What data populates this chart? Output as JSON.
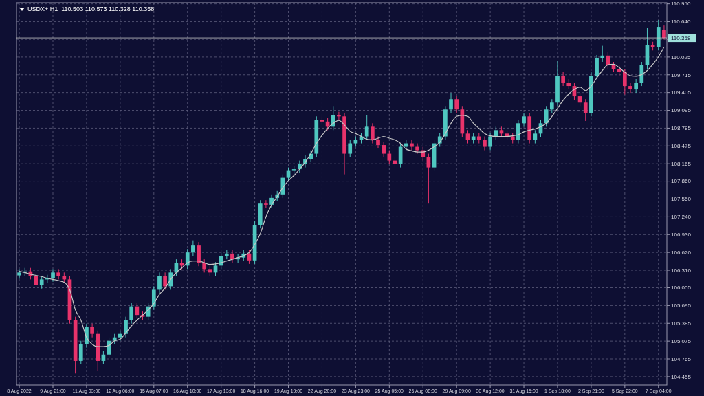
{
  "chart_data": {
    "type": "candlestick",
    "title": "USDX+,H1  110.503 110.573 110.328 110.358",
    "grid": true,
    "colors": [
      "#4fc7c0",
      "#4fc7c0",
      "#e8336b",
      "#e8336b",
      "#4fc7c0",
      "#4fc7c0",
      "#4fc7c0",
      "#e8336b",
      "#e8336b",
      "#e8336b",
      "#e8336b",
      "#4fc7c0",
      "#4fc7c0",
      "#e8336b",
      "#e8336b",
      "#4fc7c0",
      "#4fc7c0",
      "#4fc7c0",
      "#4fc7c0",
      "#4fc7c0",
      "#4fc7c0",
      "#e8336b",
      "#e8336b",
      "#4fc7c0",
      "#4fc7c0",
      "#4fc7c0",
      "#e8336b",
      "#4fc7c0",
      "#4fc7c0",
      "#e8336b",
      "#4fc7c0",
      "#4fc7c0",
      "#e8336b",
      "#e8336b",
      "#e8336b",
      "#4fc7c0",
      "#4fc7c0",
      "#4fc7c0",
      "#e8336b",
      "#4fc7c0",
      "#4fc7c0",
      "#e8336b",
      "#4fc7c0",
      "#4fc7c0",
      "#e8336b",
      "#4fc7c0",
      "#4fc7c0",
      "#4fc7c0",
      "#4fc7c0",
      "#4fc7c0",
      "#4fc7c0",
      "#4fc7c0",
      "#4fc7c0",
      "#4fc7c0",
      "#e8336b",
      "#e8336b",
      "#4fc7c0",
      "#e8336b",
      "#e8336b",
      "#4fc7c0",
      "#4fc7c0",
      "#4fc7c0",
      "#4fc7c0",
      "#e8336b",
      "#e8336b",
      "#e8336b",
      "#e8336b",
      "#e8336b",
      "#4fc7c0",
      "#4fc7c0",
      "#e8336b",
      "#e8336b",
      "#e8336b",
      "#e8336b",
      "#4fc7c0",
      "#4fc7c0",
      "#4fc7c0",
      "#4fc7c0",
      "#e8336b",
      "#e8336b",
      "#e8336b",
      "#4fc7c0",
      "#e8336b",
      "#e8336b",
      "#4fc7c0",
      "#4fc7c0",
      "#e8336b",
      "#e8336b",
      "#e8336b",
      "#4fc7c0",
      "#4fc7c0",
      "#e8336b",
      "#4fc7c0",
      "#4fc7c0",
      "#4fc7c0",
      "#4fc7c0",
      "#4fc7c0",
      "#e8336b",
      "#e8336b",
      "#e8336b",
      "#e8336b",
      "#e8336b",
      "#4fc7c0",
      "#4fc7c0",
      "#4fc7c0",
      "#e8336b",
      "#e8336b",
      "#e8336b",
      "#e8336b",
      "#e8336b",
      "#4fc7c0",
      "#4fc7c0",
      "#4fc7c0",
      "#e8336b",
      "#4fc7c0",
      "#e8336b"
    ],
    "categories": [
      "8 Aug 2022",
      null,
      null,
      null,
      null,
      null,
      "9 Aug 21:00",
      null,
      null,
      null,
      null,
      null,
      "11 Aug 03:00",
      null,
      null,
      null,
      null,
      null,
      "12 Aug 06:00",
      null,
      null,
      null,
      null,
      null,
      "15 Aug 07:00",
      null,
      null,
      null,
      null,
      null,
      "16 Aug 10:00",
      null,
      null,
      null,
      null,
      null,
      "17 Aug 13:00",
      null,
      null,
      null,
      null,
      null,
      "18 Aug 16:00",
      null,
      null,
      null,
      null,
      null,
      "19 Aug 19:00",
      null,
      null,
      null,
      null,
      null,
      "22 Aug 20:00",
      null,
      null,
      null,
      null,
      null,
      "23 Aug 23:00",
      null,
      null,
      null,
      null,
      null,
      "25 Aug 05:00",
      null,
      null,
      null,
      null,
      null,
      "26 Aug 08:00",
      null,
      null,
      null,
      null,
      null,
      "29 Aug 09:00",
      null,
      null,
      null,
      null,
      null,
      "30 Aug 12:00",
      null,
      null,
      null,
      null,
      null,
      "31 Aug 15:00",
      null,
      null,
      null,
      null,
      null,
      "1 Sep 18:00",
      null,
      null,
      null,
      null,
      null,
      "2 Sep 21:00",
      null,
      null,
      null,
      null,
      null,
      "5 Sep 22:00",
      null,
      null,
      null,
      null,
      null,
      "7 Sep 04:00",
      null
    ],
    "ohlc": [
      [
        106.22,
        106.33,
        106.16,
        106.27
      ],
      [
        106.27,
        106.35,
        106.21,
        106.29
      ],
      [
        106.29,
        106.35,
        106.15,
        106.21
      ],
      [
        106.21,
        106.27,
        105.99,
        106.05
      ],
      [
        106.05,
        106.21,
        105.99,
        106.15
      ],
      [
        106.15,
        106.23,
        106.09,
        106.17
      ],
      [
        106.17,
        106.33,
        106.11,
        106.27
      ],
      [
        106.27,
        106.33,
        106.15,
        106.21
      ],
      [
        106.21,
        106.27,
        106.09,
        106.15
      ],
      [
        106.15,
        106.21,
        105.38,
        105.44
      ],
      [
        105.44,
        105.5,
        104.51,
        104.73
      ],
      [
        104.73,
        105.08,
        104.67,
        105.02
      ],
      [
        105.02,
        105.38,
        104.96,
        105.32
      ],
      [
        105.32,
        105.38,
        105.14,
        105.2
      ],
      [
        105.2,
        105.26,
        104.55,
        104.73
      ],
      [
        104.73,
        104.9,
        104.67,
        104.84
      ],
      [
        104.84,
        105.14,
        104.78,
        105.08
      ],
      [
        105.08,
        105.2,
        105.02,
        105.14
      ],
      [
        105.14,
        105.26,
        105.08,
        105.2
      ],
      [
        105.2,
        105.5,
        105.14,
        105.44
      ],
      [
        105.44,
        105.74,
        105.38,
        105.68
      ],
      [
        105.68,
        105.74,
        105.47,
        105.53
      ],
      [
        105.53,
        105.59,
        105.44,
        105.5
      ],
      [
        105.5,
        105.74,
        105.44,
        105.68
      ],
      [
        105.68,
        106.03,
        105.62,
        105.97
      ],
      [
        105.97,
        106.27,
        105.91,
        106.21
      ],
      [
        106.21,
        106.27,
        105.97,
        106.03
      ],
      [
        106.03,
        106.33,
        105.97,
        106.27
      ],
      [
        106.27,
        106.5,
        106.21,
        106.44
      ],
      [
        106.44,
        106.5,
        106.33,
        106.39
      ],
      [
        106.39,
        106.68,
        106.33,
        106.62
      ],
      [
        106.62,
        106.83,
        106.56,
        106.74
      ],
      [
        106.74,
        106.8,
        106.38,
        106.44
      ],
      [
        106.44,
        106.5,
        106.27,
        106.33
      ],
      [
        106.33,
        106.39,
        106.21,
        106.27
      ],
      [
        106.27,
        106.45,
        106.21,
        106.39
      ],
      [
        106.39,
        106.62,
        106.33,
        106.56
      ],
      [
        106.56,
        106.66,
        106.5,
        106.6
      ],
      [
        106.6,
        106.66,
        106.44,
        106.5
      ],
      [
        106.5,
        106.59,
        106.44,
        106.53
      ],
      [
        106.53,
        106.66,
        106.47,
        106.6
      ],
      [
        106.6,
        106.66,
        106.42,
        106.48
      ],
      [
        106.48,
        107.16,
        106.42,
        107.1
      ],
      [
        107.1,
        107.53,
        107.04,
        107.47
      ],
      [
        107.47,
        107.53,
        107.39,
        107.45
      ],
      [
        107.45,
        107.63,
        107.39,
        107.57
      ],
      [
        107.57,
        107.69,
        107.51,
        107.63
      ],
      [
        107.63,
        107.98,
        107.57,
        107.92
      ],
      [
        107.92,
        108.1,
        107.86,
        108.04
      ],
      [
        108.04,
        108.13,
        107.98,
        108.07
      ],
      [
        108.07,
        108.22,
        108.01,
        108.16
      ],
      [
        108.16,
        108.31,
        108.1,
        108.25
      ],
      [
        108.25,
        108.4,
        108.19,
        108.34
      ],
      [
        108.34,
        108.99,
        108.28,
        108.93
      ],
      [
        108.93,
        108.99,
        108.84,
        108.9
      ],
      [
        108.9,
        108.96,
        108.75,
        108.81
      ],
      [
        108.81,
        109.17,
        108.75,
        109.01
      ],
      [
        109.01,
        109.07,
        108.93,
        108.99
      ],
      [
        108.99,
        109.05,
        107.98,
        108.34
      ],
      [
        108.34,
        108.58,
        108.28,
        108.52
      ],
      [
        108.52,
        108.64,
        108.46,
        108.58
      ],
      [
        108.58,
        108.7,
        108.52,
        108.64
      ],
      [
        108.64,
        109.01,
        108.58,
        108.81
      ],
      [
        108.81,
        108.87,
        108.52,
        108.58
      ],
      [
        108.58,
        108.64,
        108.43,
        108.49
      ],
      [
        108.49,
        108.55,
        108.28,
        108.34
      ],
      [
        108.34,
        108.4,
        108.16,
        108.22
      ],
      [
        108.22,
        108.28,
        108.1,
        108.16
      ],
      [
        108.16,
        108.52,
        108.1,
        108.46
      ],
      [
        108.46,
        108.58,
        108.4,
        108.52
      ],
      [
        108.52,
        108.58,
        108.4,
        108.46
      ],
      [
        108.46,
        108.52,
        108.34,
        108.4
      ],
      [
        108.4,
        108.46,
        108.22,
        108.28
      ],
      [
        108.28,
        108.34,
        107.47,
        108.1
      ],
      [
        108.1,
        108.58,
        108.04,
        108.52
      ],
      [
        108.52,
        108.7,
        108.46,
        108.64
      ],
      [
        108.64,
        109.17,
        108.58,
        109.11
      ],
      [
        109.11,
        109.4,
        109.05,
        109.29
      ],
      [
        109.29,
        109.35,
        109.05,
        109.11
      ],
      [
        109.11,
        109.17,
        108.63,
        108.69
      ],
      [
        108.69,
        108.75,
        108.52,
        108.58
      ],
      [
        108.58,
        108.7,
        108.52,
        108.64
      ],
      [
        108.64,
        108.7,
        108.52,
        108.58
      ],
      [
        108.58,
        108.64,
        108.4,
        108.46
      ],
      [
        108.46,
        108.7,
        108.4,
        108.64
      ],
      [
        108.64,
        108.81,
        108.58,
        108.75
      ],
      [
        108.75,
        108.81,
        108.63,
        108.69
      ],
      [
        108.69,
        108.75,
        108.58,
        108.64
      ],
      [
        108.64,
        108.7,
        108.52,
        108.58
      ],
      [
        108.58,
        108.93,
        108.52,
        108.87
      ],
      [
        108.87,
        109.05,
        108.81,
        108.99
      ],
      [
        108.99,
        109.05,
        108.52,
        108.58
      ],
      [
        108.58,
        108.75,
        108.52,
        108.69
      ],
      [
        108.69,
        108.93,
        108.63,
        108.87
      ],
      [
        108.87,
        109.17,
        108.81,
        109.11
      ],
      [
        109.11,
        109.29,
        109.05,
        109.23
      ],
      [
        109.23,
        109.96,
        109.17,
        109.7
      ],
      [
        109.7,
        109.76,
        109.52,
        109.58
      ],
      [
        109.58,
        109.64,
        109.46,
        109.52
      ],
      [
        109.52,
        109.58,
        109.28,
        109.34
      ],
      [
        109.34,
        109.4,
        109.17,
        109.23
      ],
      [
        109.23,
        109.29,
        108.91,
        109.05
      ],
      [
        109.05,
        109.76,
        108.99,
        109.7
      ],
      [
        109.7,
        110.06,
        109.64,
        110.0
      ],
      [
        110.0,
        110.22,
        109.94,
        110.05
      ],
      [
        110.05,
        110.11,
        109.82,
        109.88
      ],
      [
        109.88,
        109.94,
        109.76,
        109.82
      ],
      [
        109.82,
        109.88,
        109.7,
        109.76
      ],
      [
        109.76,
        109.82,
        109.37,
        109.52
      ],
      [
        109.52,
        109.58,
        109.4,
        109.46
      ],
      [
        109.46,
        109.64,
        109.4,
        109.58
      ],
      [
        109.58,
        109.94,
        109.52,
        109.88
      ],
      [
        109.88,
        110.53,
        109.82,
        110.23
      ],
      [
        110.23,
        110.29,
        110.14,
        110.2
      ],
      [
        110.2,
        110.67,
        110.14,
        110.55
      ],
      [
        110.503,
        110.573,
        110.328,
        110.358
      ]
    ],
    "series": [
      {
        "type": "line",
        "color": "#c8c8c8",
        "values": [
          106.29,
          106.27,
          106.24,
          106.22,
          106.2,
          106.17,
          106.15,
          106.13,
          106.1,
          105.97,
          105.62,
          105.44,
          105.14,
          105.02,
          104.98,
          104.98,
          105.0,
          105.08,
          105.11,
          105.22,
          105.34,
          105.44,
          105.53,
          105.62,
          105.73,
          105.89,
          106.0,
          106.15,
          106.27,
          106.35,
          106.44,
          106.47,
          106.47,
          106.44,
          106.41,
          106.42,
          106.44,
          106.47,
          106.5,
          106.53,
          106.56,
          106.62,
          106.76,
          106.95,
          107.24,
          107.45,
          107.59,
          107.75,
          107.87,
          107.96,
          108.07,
          108.19,
          108.34,
          108.52,
          108.66,
          108.78,
          108.87,
          108.92,
          108.84,
          108.73,
          108.69,
          108.64,
          108.59,
          108.58,
          108.61,
          108.64,
          108.61,
          108.58,
          108.52,
          108.42,
          108.39,
          108.37,
          108.37,
          108.4,
          108.46,
          108.54,
          108.69,
          108.87,
          108.99,
          109.01,
          108.99,
          108.87,
          108.78,
          108.69,
          108.65,
          108.64,
          108.64,
          108.64,
          108.65,
          108.67,
          108.72,
          108.75,
          108.77,
          108.81,
          108.87,
          108.99,
          109.13,
          109.27,
          109.38,
          109.46,
          109.5,
          109.44,
          109.52,
          109.66,
          109.79,
          109.89,
          109.9,
          109.84,
          109.76,
          109.7,
          109.69,
          109.72,
          109.79,
          109.9,
          110.03,
          110.2
        ]
      }
    ],
    "ylim": [
      104.31,
      110.97
    ],
    "yticks": [
      {
        "value": 110.95,
        "label": "110.950"
      },
      {
        "value": 110.64,
        "label": "110.640"
      },
      {
        "value": 110.333,
        "label": null
      },
      {
        "value": 110.025,
        "label": "110.025"
      },
      {
        "value": 109.715,
        "label": "109.715"
      },
      {
        "value": 109.405,
        "label": "109.405"
      },
      {
        "value": 109.095,
        "label": "109.095"
      },
      {
        "value": 108.785,
        "label": "108.785"
      },
      {
        "value": 108.475,
        "label": "108.475"
      },
      {
        "value": 108.165,
        "label": "108.165"
      },
      {
        "value": 107.86,
        "label": "107.860"
      },
      {
        "value": 107.55,
        "label": "107.550"
      },
      {
        "value": 107.24,
        "label": "107.240"
      },
      {
        "value": 106.93,
        "label": "106.930"
      },
      {
        "value": 106.62,
        "label": "106.620"
      },
      {
        "value": 106.31,
        "label": "106.310"
      },
      {
        "value": 106.005,
        "label": "106.005"
      },
      {
        "value": 105.695,
        "label": "105.695"
      },
      {
        "value": 105.385,
        "label": "105.385"
      },
      {
        "value": 105.075,
        "label": "105.075"
      },
      {
        "value": 104.765,
        "label": "104.765"
      },
      {
        "value": 104.455,
        "label": "104.455"
      }
    ],
    "ref_lines": [
      {
        "axis": "y",
        "value": 110.358,
        "label": "110.358",
        "color": "#c8c8c8"
      }
    ]
  }
}
